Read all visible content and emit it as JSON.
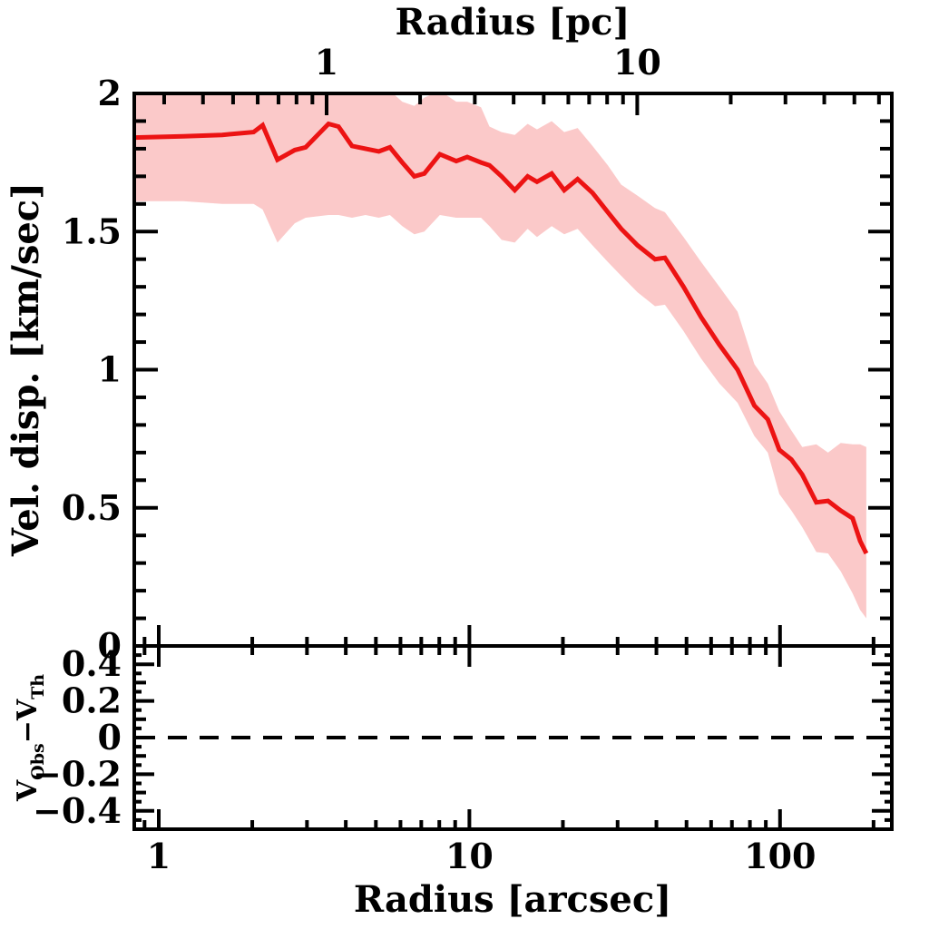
{
  "chart_data": {
    "type": "line",
    "title": "",
    "x_axis": {
      "label": "Radius [arcsec]",
      "scale": "log",
      "range": [
        0.834,
        229
      ],
      "major_ticks": [
        1,
        10,
        100
      ],
      "major_tick_labels": [
        "1",
        "10",
        "100"
      ]
    },
    "top_axis": {
      "label": "Radius [pc]",
      "scale": "log",
      "arcsec_per_pc": 3.47,
      "major_ticks": [
        1,
        10
      ],
      "major_tick_labels": [
        "1",
        "10"
      ]
    },
    "y_axis_main": {
      "label": "Vel. disp. [km/sec]",
      "range": [
        0,
        2
      ],
      "major_ticks": [
        0.5,
        1,
        1.5
      ],
      "minor_step": 0.1,
      "tick_label_values": [
        2,
        1.5,
        1,
        0.5,
        0
      ],
      "tick_labels": [
        "2",
        "1.5",
        "1",
        "0.5",
        "0"
      ]
    },
    "y_axis_residual": {
      "label_parts": {
        "base1": "V",
        "sub1": "Obs",
        "base2": "−V",
        "sub2": "Th"
      },
      "range": [
        -0.5,
        0.5
      ],
      "minor_step": 0.05,
      "tick_label_values": [
        0.4,
        0.2,
        0,
        -0.2,
        -0.4
      ],
      "tick_labels": [
        "0.4",
        "0.2",
        "0",
        "−0.2",
        "−0.4"
      ]
    },
    "grid": false,
    "legend": null,
    "colors": {
      "line": "#ec1313",
      "band": "#fbc9c9",
      "frame": "#000000",
      "zero_line": "#000000"
    },
    "zero_line": {
      "panel": "residual",
      "y": 0,
      "style": "dashed"
    },
    "series": [
      {
        "name": "velocity-dispersion-profile",
        "x_arcsec": [
          0.83,
          1.2,
          1.6,
          2.02,
          2.16,
          2.41,
          2.74,
          2.97,
          3.52,
          3.79,
          4.19,
          4.63,
          5.11,
          5.55,
          6.08,
          6.65,
          7.16,
          8.03,
          9.07,
          9.84,
          10.9,
          11.6,
          12.7,
          14.0,
          15.4,
          16.5,
          18.4,
          20.2,
          22.3,
          24.9,
          27.9,
          30.8,
          34.8,
          39.6,
          42.6,
          48.9,
          55.7,
          63.8,
          73.0,
          82.7,
          91.3,
          99.5,
          108.8,
          117.9,
          130.9,
          142.7,
          156.8,
          171.3,
          181.1,
          189.6
        ],
        "y_kms": [
          1.84,
          1.845,
          1.85,
          1.86,
          1.885,
          1.76,
          1.795,
          1.805,
          1.89,
          1.88,
          1.81,
          1.8,
          1.79,
          1.805,
          1.75,
          1.7,
          1.71,
          1.78,
          1.755,
          1.77,
          1.75,
          1.74,
          1.7,
          1.65,
          1.7,
          1.68,
          1.71,
          1.65,
          1.69,
          1.64,
          1.57,
          1.51,
          1.45,
          1.4,
          1.405,
          1.3,
          1.19,
          1.09,
          1.0,
          0.87,
          0.82,
          0.71,
          0.675,
          0.62,
          0.52,
          0.525,
          0.49,
          0.462,
          0.38,
          0.335
        ],
        "band_low": [
          1.61,
          1.61,
          1.6,
          1.6,
          1.58,
          1.46,
          1.53,
          1.55,
          1.56,
          1.56,
          1.55,
          1.56,
          1.55,
          1.56,
          1.52,
          1.49,
          1.5,
          1.56,
          1.55,
          1.55,
          1.55,
          1.52,
          1.47,
          1.46,
          1.51,
          1.48,
          1.52,
          1.49,
          1.51,
          1.45,
          1.39,
          1.34,
          1.28,
          1.23,
          1.235,
          1.14,
          1.04,
          0.95,
          0.88,
          0.76,
          0.7,
          0.55,
          0.49,
          0.43,
          0.34,
          0.335,
          0.27,
          0.19,
          0.13,
          0.1
        ],
        "band_high": [
          2.1,
          2.1,
          2.1,
          2.1,
          2.08,
          2.03,
          2.06,
          2.08,
          2.14,
          2.1,
          2.06,
          2.05,
          2.03,
          2.01,
          1.97,
          1.955,
          1.985,
          2.01,
          1.97,
          1.97,
          1.95,
          1.88,
          1.86,
          1.85,
          1.89,
          1.87,
          1.9,
          1.86,
          1.875,
          1.81,
          1.74,
          1.67,
          1.63,
          1.585,
          1.57,
          1.48,
          1.39,
          1.3,
          1.21,
          1.02,
          0.95,
          0.85,
          0.78,
          0.72,
          0.73,
          0.7,
          0.735,
          0.73,
          0.73,
          0.72
        ]
      }
    ]
  }
}
